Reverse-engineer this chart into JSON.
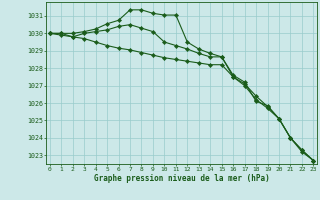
{
  "title": "",
  "xlabel": "Graphe pression niveau de la mer (hPa)",
  "bg_color": "#cce8e8",
  "grid_color": "#99cccc",
  "line_color": "#1a5c1a",
  "x": [
    0,
    1,
    2,
    3,
    4,
    5,
    6,
    7,
    8,
    9,
    10,
    11,
    12,
    13,
    14,
    15,
    16,
    17,
    18,
    19,
    20,
    21,
    22,
    23
  ],
  "line1": [
    1030.0,
    1030.0,
    1030.0,
    1030.1,
    1030.25,
    1030.55,
    1030.75,
    1031.35,
    1031.35,
    1031.15,
    1031.05,
    1031.05,
    1029.5,
    1029.1,
    1028.85,
    1028.65,
    1027.6,
    1027.2,
    1026.1,
    1025.85,
    1025.1,
    1024.0,
    1023.2,
    1022.7
  ],
  "line2": [
    1030.0,
    1029.9,
    1029.8,
    1030.0,
    1030.1,
    1030.2,
    1030.4,
    1030.5,
    1030.3,
    1030.1,
    1029.5,
    1029.3,
    1029.1,
    1028.85,
    1028.65,
    1028.65,
    1027.5,
    1027.1,
    1026.4,
    1025.8,
    1025.1,
    1024.0,
    1023.3,
    1022.7
  ],
  "line3": [
    1030.0,
    1030.0,
    1029.8,
    1029.7,
    1029.5,
    1029.3,
    1029.15,
    1029.05,
    1028.9,
    1028.75,
    1028.6,
    1028.5,
    1028.4,
    1028.3,
    1028.2,
    1028.2,
    1027.5,
    1027.0,
    1026.2,
    1025.7,
    1025.1,
    1024.0,
    1023.3,
    1022.7
  ],
  "ylim_min": 1022.5,
  "ylim_max": 1031.8,
  "yticks": [
    1023,
    1024,
    1025,
    1026,
    1027,
    1028,
    1029,
    1030,
    1031
  ],
  "xlim_min": -0.3,
  "xlim_max": 23.3
}
